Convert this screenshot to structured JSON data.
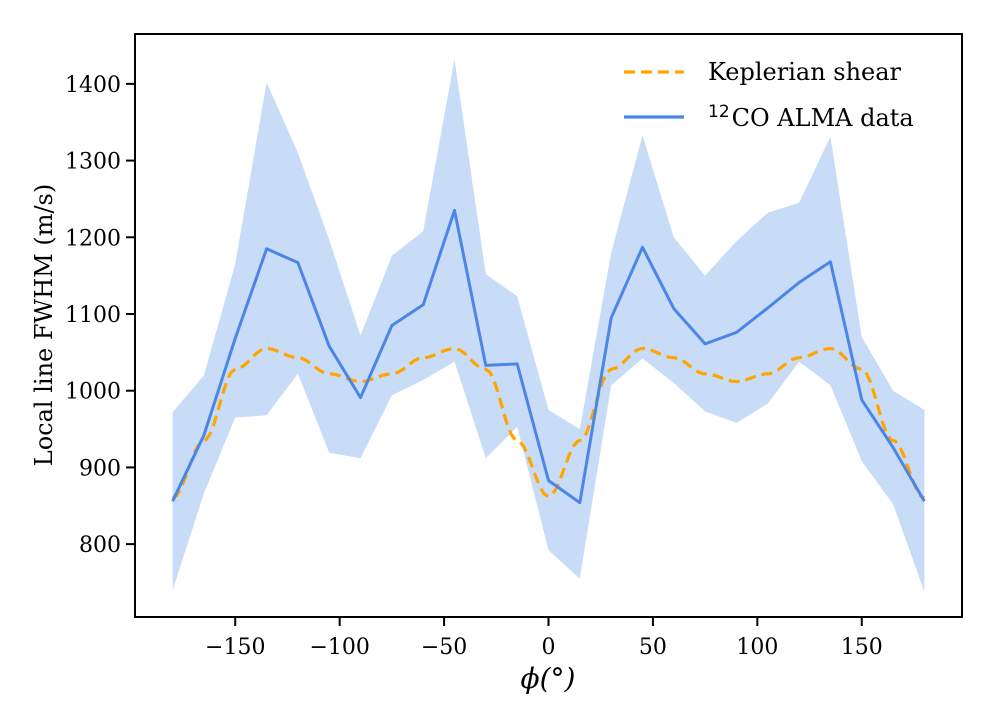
{
  "chart_data": {
    "type": "line",
    "xlabel": "ϕ(°)",
    "ylabel": "Local line FWHM (m/s)",
    "xlim": [
      -198,
      198
    ],
    "ylim": [
      705,
      1465
    ],
    "xticks": [
      -150,
      -100,
      -50,
      0,
      50,
      100,
      150
    ],
    "yticks": [
      800,
      900,
      1000,
      1100,
      1200,
      1300,
      1400
    ],
    "xtick_labels": [
      "−150",
      "−100",
      "−50",
      "0",
      "50",
      "100",
      "150"
    ],
    "ytick_labels": [
      "800",
      "900",
      "1000",
      "1100",
      "1200",
      "1300",
      "1400"
    ],
    "legend_position": "top-right",
    "series": [
      {
        "name": "Keplerian shear",
        "style": "dashed",
        "color": "#FFA500",
        "x": [
          -180,
          -165,
          -150,
          -135,
          -120,
          -105,
          -90,
          -75,
          -60,
          -45,
          -30,
          -15,
          0,
          15,
          30,
          45,
          60,
          75,
          90,
          105,
          120,
          135,
          150,
          165,
          180
        ],
        "y": [
          860,
          935,
          1028,
          1055,
          1043,
          1022,
          1012,
          1022,
          1043,
          1055,
          1028,
          935,
          862,
          935,
          1028,
          1055,
          1043,
          1022,
          1012,
          1022,
          1043,
          1055,
          1028,
          935,
          860
        ]
      },
      {
        "name": "CO ALMA data",
        "name_superscript": "12",
        "style": "solid",
        "color": "#4A86E8",
        "x": [
          -180,
          -165,
          -150,
          -135,
          -120,
          -105,
          -90,
          -75,
          -60,
          -45,
          -30,
          -15,
          0,
          15,
          30,
          45,
          60,
          75,
          90,
          105,
          120,
          135,
          150,
          165,
          180
        ],
        "y": [
          856,
          942,
          1068,
          1185,
          1167,
          1058,
          991,
          1085,
          1112,
          1235,
          1033,
          1035,
          883,
          854,
          1095,
          1187,
          1107,
          1061,
          1076,
          1108,
          1141,
          1168,
          988,
          926,
          856
        ],
        "band_upper": [
          972,
          1020,
          1165,
          1402,
          1310,
          1197,
          1072,
          1176,
          1208,
          1432,
          1152,
          1123,
          975,
          950,
          1180,
          1333,
          1200,
          1150,
          1195,
          1232,
          1245,
          1331,
          1070,
          1000,
          975
        ],
        "band_lower": [
          740,
          866,
          965,
          968,
          1022,
          919,
          912,
          994,
          1014,
          1038,
          912,
          953,
          792,
          755,
          1007,
          1042,
          1010,
          973,
          958,
          983,
          1038,
          1007,
          908,
          852,
          738
        ]
      }
    ]
  },
  "band_color": "#C9DCF7"
}
